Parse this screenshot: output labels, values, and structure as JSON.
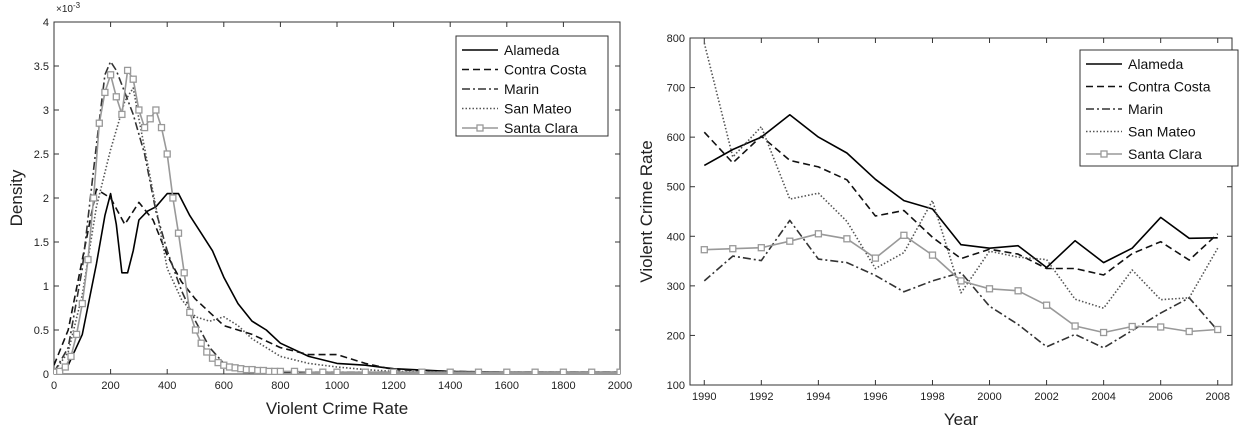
{
  "chart_data": [
    {
      "type": "line",
      "xlabel": "Violent Crime Rate",
      "ylabel": "Density",
      "xlim": [
        0,
        2000
      ],
      "ylim": [
        0,
        0.004
      ],
      "xticks": [
        0,
        200,
        400,
        600,
        800,
        1000,
        1200,
        1400,
        1600,
        1800,
        2000
      ],
      "yticks": [
        0,
        0.5,
        1,
        1.5,
        2,
        2.5,
        3,
        3.5,
        4
      ],
      "y_exponent_label": "×10",
      "y_exponent_power": "-3",
      "legend_position": "top-right",
      "grid": false,
      "series": [
        {
          "name": "Alameda",
          "style": "solid",
          "color": "#000000",
          "x": [
            0,
            50,
            100,
            150,
            180,
            200,
            220,
            240,
            260,
            280,
            300,
            330,
            360,
            400,
            440,
            480,
            520,
            560,
            600,
            650,
            700,
            750,
            800,
            900,
            1000,
            1100,
            1200,
            1400,
            1600,
            1800,
            2000
          ],
          "y": [
            0.02,
            0.1,
            0.45,
            1.25,
            1.8,
            2.05,
            1.7,
            1.15,
            1.15,
            1.4,
            1.75,
            1.85,
            1.9,
            2.05,
            2.05,
            1.8,
            1.6,
            1.4,
            1.1,
            0.8,
            0.6,
            0.5,
            0.35,
            0.2,
            0.12,
            0.1,
            0.06,
            0.03,
            0.02,
            0.02,
            0.02
          ]
        },
        {
          "name": "Contra Costa",
          "style": "dashed",
          "color": "#111111",
          "x": [
            0,
            50,
            100,
            150,
            200,
            250,
            300,
            350,
            400,
            450,
            500,
            550,
            600,
            650,
            700,
            800,
            900,
            1000,
            1100,
            1200,
            1400,
            1600,
            1800,
            2000
          ],
          "y": [
            0.1,
            0.5,
            1.3,
            2.1,
            2.0,
            1.7,
            1.95,
            1.75,
            1.35,
            1.05,
            0.85,
            0.7,
            0.55,
            0.5,
            0.45,
            0.3,
            0.22,
            0.22,
            0.12,
            0.05,
            0.03,
            0.02,
            0.02,
            0.02
          ]
        },
        {
          "name": "Marin",
          "style": "dash-dot",
          "color": "#333333",
          "x": [
            0,
            50,
            100,
            150,
            180,
            200,
            220,
            250,
            280,
            320,
            360,
            400,
            450,
            500,
            550,
            600,
            650,
            700,
            800,
            900,
            1000,
            1200,
            1400,
            1600,
            1800,
            2000
          ],
          "y": [
            0.02,
            0.3,
            1.2,
            2.6,
            3.4,
            3.55,
            3.45,
            3.2,
            2.95,
            2.5,
            1.85,
            1.4,
            0.95,
            0.6,
            0.3,
            0.12,
            0.05,
            0.03,
            0.02,
            0.02,
            0.02,
            0.02,
            0.02,
            0.02,
            0.02,
            0.02
          ]
        },
        {
          "name": "San Mateo",
          "style": "dotted",
          "color": "#555555",
          "x": [
            0,
            50,
            100,
            150,
            200,
            250,
            280,
            300,
            330,
            360,
            400,
            450,
            500,
            550,
            600,
            650,
            700,
            750,
            800,
            900,
            1000,
            1100,
            1200,
            1400,
            1600,
            1800,
            2000
          ],
          "y": [
            0.02,
            0.25,
            0.9,
            1.9,
            2.55,
            3.1,
            3.25,
            2.9,
            2.4,
            1.9,
            1.2,
            0.85,
            0.65,
            0.6,
            0.65,
            0.55,
            0.4,
            0.3,
            0.2,
            0.12,
            0.08,
            0.05,
            0.03,
            0.02,
            0.02,
            0.02,
            0.02
          ]
        },
        {
          "name": "Santa Clara",
          "style": "solid-square-markers",
          "color": "#999999",
          "x": [
            0,
            20,
            40,
            60,
            80,
            100,
            120,
            140,
            160,
            180,
            200,
            220,
            240,
            260,
            280,
            300,
            320,
            340,
            360,
            380,
            400,
            420,
            440,
            460,
            480,
            500,
            520,
            540,
            560,
            580,
            600,
            620,
            640,
            660,
            680,
            700,
            720,
            740,
            760,
            780,
            800,
            850,
            900,
            950,
            1000,
            1100,
            1200,
            1300,
            1400,
            1500,
            1600,
            1700,
            1800,
            1900,
            2000
          ],
          "y": [
            0.02,
            0.03,
            0.08,
            0.2,
            0.45,
            0.8,
            1.3,
            2.0,
            2.85,
            3.2,
            3.4,
            3.15,
            2.95,
            3.45,
            3.35,
            3.0,
            2.8,
            2.9,
            3.0,
            2.8,
            2.5,
            2.0,
            1.6,
            1.15,
            0.7,
            0.5,
            0.35,
            0.25,
            0.18,
            0.13,
            0.1,
            0.08,
            0.07,
            0.06,
            0.05,
            0.05,
            0.04,
            0.04,
            0.03,
            0.03,
            0.03,
            0.03,
            0.02,
            0.02,
            0.02,
            0.02,
            0.02,
            0.02,
            0.02,
            0.02,
            0.02,
            0.02,
            0.02,
            0.02,
            0.02
          ]
        }
      ]
    },
    {
      "type": "line",
      "xlabel": "Year",
      "ylabel": "Violent Crime Rate",
      "xlim": [
        1989.5,
        2008.5
      ],
      "ylim": [
        100,
        800
      ],
      "xticks": [
        1990,
        1992,
        1994,
        1996,
        1998,
        2000,
        2002,
        2004,
        2006,
        2008
      ],
      "yticks": [
        100,
        200,
        300,
        400,
        500,
        600,
        700,
        800
      ],
      "legend_position": "top-right",
      "grid": false,
      "x": [
        1990,
        1991,
        1992,
        1993,
        1994,
        1995,
        1996,
        1997,
        1998,
        1999,
        2000,
        2001,
        2002,
        2003,
        2004,
        2005,
        2006,
        2007,
        2008
      ],
      "series": [
        {
          "name": "Alameda",
          "style": "solid",
          "color": "#000000",
          "values": [
            543,
            575,
            600,
            645,
            600,
            568,
            515,
            472,
            455,
            383,
            376,
            381,
            337,
            391,
            347,
            376,
            438,
            396,
            397
          ]
        },
        {
          "name": "Contra Costa",
          "style": "dashed",
          "color": "#111111",
          "values": [
            610,
            548,
            602,
            553,
            540,
            514,
            441,
            452,
            398,
            355,
            374,
            364,
            335,
            335,
            322,
            365,
            389,
            352,
            405
          ]
        },
        {
          "name": "Marin",
          "style": "dash-dot",
          "color": "#333333",
          "values": [
            310,
            360,
            351,
            432,
            354,
            347,
            321,
            288,
            310,
            327,
            259,
            222,
            177,
            202,
            175,
            210,
            245,
            276,
            210
          ]
        },
        {
          "name": "San Mateo",
          "style": "dotted",
          "color": "#555555",
          "values": [
            790,
            560,
            621,
            475,
            487,
            430,
            335,
            367,
            472,
            286,
            370,
            358,
            353,
            273,
            255,
            332,
            272,
            276,
            376
          ]
        },
        {
          "name": "Santa Clara",
          "style": "solid-square-markers",
          "color": "#999999",
          "values": [
            373,
            375,
            377,
            390,
            405,
            395,
            356,
            402,
            362,
            310,
            294,
            290,
            261,
            219,
            206,
            218,
            217,
            208,
            212
          ]
        }
      ]
    }
  ]
}
